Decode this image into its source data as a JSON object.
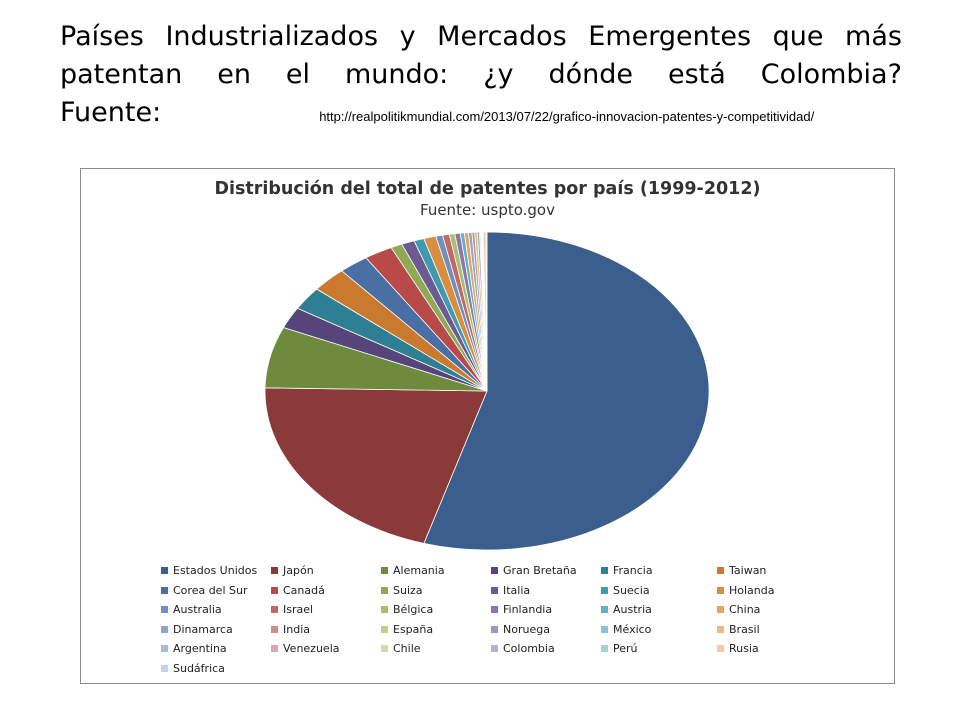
{
  "slide": {
    "title_line1_words": [
      "Países",
      "Industrializados",
      "y",
      "Mercados",
      "Emergentes",
      "que",
      "más"
    ],
    "title_line2_words": [
      "patentan",
      "en",
      "el",
      "mundo:",
      "¿y",
      "dónde",
      "está",
      "Colombia?"
    ],
    "title_line3_label": "Fuente:",
    "source_url": "http://realpolitikmundial.com/2013/07/22/grafico-innovacion-patentes-y-competitividad/"
  },
  "chart_data": {
    "type": "pie",
    "title": "Distribución del total de patentes por país (1999-2012)",
    "subtitle": "Fuente: uspto.gov",
    "legend_placement": "bottom",
    "categories": [
      "Estados Unidos",
      "Japón",
      "Alemania",
      "Gran Bretaña",
      "Francia",
      "Taiwan",
      "Corea del Sur",
      "Canadá",
      "Suiza",
      "Italia",
      "Suecia",
      "Holanda",
      "Australia",
      "Israel",
      "Bélgica",
      "Finlandia",
      "Austria",
      "China",
      "Dinamarca",
      "India",
      "España",
      "Noruega",
      "México",
      "Brasil",
      "Argentina",
      "Venezuela",
      "Chile",
      "Colombia",
      "Perú",
      "Rusia",
      "Sudáfrica"
    ],
    "values": [
      55.3,
      21.0,
      6.3,
      2.2,
      2.4,
      2.6,
      2.2,
      2.1,
      0.85,
      0.95,
      0.75,
      0.9,
      0.5,
      0.5,
      0.4,
      0.4,
      0.3,
      0.3,
      0.25,
      0.2,
      0.2,
      0.15,
      0.08,
      0.07,
      0.05,
      0.03,
      0.02,
      0.01,
      0.01,
      0.2,
      0.08
    ],
    "unit": "%",
    "colors": [
      "#3B5E8C",
      "#8B3A3A",
      "#6E8B3D",
      "#56457A",
      "#2E7F93",
      "#C97A2E",
      "#4A6FA5",
      "#B84A48",
      "#8FAA52",
      "#6C5A92",
      "#3F9AB0",
      "#D98E3F",
      "#6F8FC0",
      "#C06866",
      "#A8C06C",
      "#8A78AC",
      "#65B0C4",
      "#E8A45E",
      "#8BA6CF",
      "#D08A88",
      "#BCD08C",
      "#A394C0",
      "#86C2D3",
      "#F2B681",
      "#A7BBDB",
      "#DCA7A5",
      "#CEDDAA",
      "#BAB0D0",
      "#A6D0DE",
      "#F7C9A4",
      "#C5D2E6"
    ]
  }
}
